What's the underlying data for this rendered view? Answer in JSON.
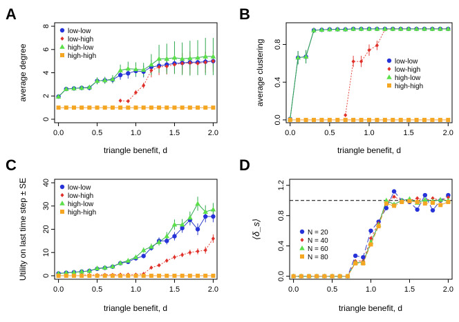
{
  "chart_data": [
    {
      "type": "scatter",
      "panel_label": "A",
      "xlabel": "triangle benefit,  d",
      "ylabel": "average degree",
      "xlim": [
        -0.05,
        2.05
      ],
      "ylim": [
        -0.3,
        8.3
      ],
      "xticks": [
        "0.0",
        "0.5",
        "1.0",
        "1.5",
        "2.0"
      ],
      "yticks": [
        "0",
        "2",
        "4",
        "6",
        "8"
      ],
      "ytick_values": [
        0,
        2,
        4,
        6,
        8
      ],
      "legend": [
        "low-low",
        "low-high",
        "high-low",
        "high-high"
      ],
      "legend_position": "top-left",
      "series": [
        {
          "name": "low-low",
          "x": [
            0,
            0.1,
            0.2,
            0.3,
            0.4,
            0.5,
            0.6,
            0.7,
            0.8,
            0.9,
            1.0,
            1.1,
            1.2,
            1.3,
            1.4,
            1.5,
            1.6,
            1.7,
            1.8,
            1.9,
            2.0
          ],
          "y": [
            1.95,
            2.6,
            2.65,
            2.7,
            2.7,
            3.3,
            3.35,
            3.4,
            3.8,
            3.95,
            4.15,
            4.1,
            4.5,
            4.6,
            4.7,
            4.8,
            4.85,
            4.9,
            4.9,
            4.95,
            5.0
          ],
          "err": [
            0.1,
            0.15,
            0.15,
            0.2,
            0.2,
            0.25,
            0.25,
            0.3,
            0.4,
            0.45,
            0.5,
            0.5,
            0.6,
            0.6,
            0.6,
            0.6,
            0.6,
            0.6,
            0.6,
            0.6,
            0.6
          ]
        },
        {
          "name": "low-high",
          "x": [
            0.8,
            0.9,
            1.0,
            1.1,
            1.2,
            1.3,
            1.4,
            1.5,
            1.6,
            1.7,
            1.8,
            1.9,
            2.0
          ],
          "y": [
            1.6,
            1.55,
            2.3,
            2.9,
            4.2,
            4.5,
            4.55,
            4.7,
            4.8,
            4.85,
            4.8,
            4.9,
            5.0
          ],
          "err": [
            0.15,
            0.15,
            0.2,
            0.25,
            0.6,
            0.7,
            0.7,
            0.8,
            0.9,
            1.0,
            1.0,
            0.9,
            0.9
          ]
        },
        {
          "name": "high-low",
          "x": [
            0,
            0.1,
            0.2,
            0.3,
            0.4,
            0.5,
            0.6,
            0.7,
            0.8,
            0.9,
            1.0,
            1.1,
            1.2,
            1.3,
            1.4,
            1.5,
            1.6,
            1.7,
            1.8,
            1.9,
            2.0
          ],
          "y": [
            1.95,
            2.6,
            2.65,
            2.7,
            2.75,
            3.3,
            3.35,
            3.45,
            4.2,
            4.35,
            4.3,
            4.25,
            4.7,
            5.2,
            5.2,
            5.3,
            5.2,
            5.25,
            5.3,
            5.4,
            5.4
          ],
          "err": [
            0.1,
            0.15,
            0.15,
            0.2,
            0.2,
            0.3,
            0.3,
            0.35,
            0.5,
            0.6,
            0.6,
            0.6,
            0.9,
            1.2,
            1.3,
            1.4,
            1.4,
            1.5,
            1.5,
            1.6,
            1.6
          ]
        },
        {
          "name": "high-high",
          "x": [
            0,
            0.1,
            0.2,
            0.3,
            0.4,
            0.5,
            0.6,
            0.7,
            0.8,
            0.9,
            1.0,
            1.1,
            1.2,
            1.3,
            1.4,
            1.5,
            1.6,
            1.7,
            1.8,
            1.9,
            2.0
          ],
          "y": [
            1,
            1,
            1,
            1,
            1,
            1,
            1,
            1,
            1,
            1,
            1,
            1,
            1,
            1,
            1,
            1,
            1,
            1,
            1,
            1,
            1
          ],
          "err": [
            0,
            0,
            0,
            0,
            0,
            0,
            0,
            0,
            0,
            0,
            0,
            0,
            0,
            0,
            0,
            0,
            0,
            0,
            0,
            0,
            0
          ]
        }
      ]
    },
    {
      "type": "scatter",
      "panel_label": "B",
      "xlabel": "triangle benefit,  d",
      "ylabel": "average clustering",
      "xlim": [
        -0.05,
        2.05
      ],
      "ylim": [
        -0.03,
        1.03
      ],
      "xticks": [
        "0.0",
        "0.5",
        "1.0",
        "1.5",
        "2.0"
      ],
      "yticks": [
        "0.0",
        "0.4",
        "0.8"
      ],
      "ytick_values": [
        0,
        0.4,
        0.8
      ],
      "legend": [
        "low-low",
        "low-high",
        "high-low",
        "high-high"
      ],
      "legend_position": "center-right",
      "series": [
        {
          "name": "low-low",
          "x": [
            0,
            0.1,
            0.2,
            0.3,
            0.4,
            0.5,
            0.6,
            0.7,
            0.8,
            0.9,
            1.0,
            1.1,
            1.2,
            1.3,
            1.4,
            1.5,
            1.6,
            1.7,
            1.8,
            1.9,
            2.0
          ],
          "y": [
            0.01,
            0.66,
            0.67,
            0.95,
            0.955,
            0.96,
            0.96,
            0.96,
            0.965,
            0.965,
            0.965,
            0.965,
            0.965,
            0.965,
            0.965,
            0.965,
            0.965,
            0.965,
            0.965,
            0.965,
            0.965
          ],
          "err": [
            0.01,
            0.07,
            0.07,
            0.03,
            0.02,
            0.02,
            0.02,
            0.02,
            0.01,
            0.01,
            0.01,
            0.01,
            0.01,
            0.01,
            0.01,
            0.01,
            0.01,
            0.01,
            0.01,
            0.01,
            0.01
          ]
        },
        {
          "name": "low-high",
          "x": [
            0.7,
            0.8,
            0.9,
            1.0,
            1.1,
            1.2,
            1.3,
            1.4,
            1.5,
            1.6,
            1.7,
            1.8,
            1.9,
            2.0
          ],
          "y": [
            0.05,
            0.62,
            0.62,
            0.74,
            0.79,
            0.96,
            0.965,
            0.965,
            0.965,
            0.965,
            0.965,
            0.965,
            0.965,
            0.965
          ],
          "err": [
            0,
            0.06,
            0.06,
            0.06,
            0.05,
            0.02,
            0.01,
            0.01,
            0.01,
            0.01,
            0.01,
            0.01,
            0.01,
            0.01
          ]
        },
        {
          "name": "high-low",
          "x": [
            0,
            0.1,
            0.2,
            0.3,
            0.4,
            0.5,
            0.6,
            0.7,
            0.8,
            0.9,
            1.0,
            1.1,
            1.2,
            1.3,
            1.4,
            1.5,
            1.6,
            1.7,
            1.8,
            1.9,
            2.0
          ],
          "y": [
            0.01,
            0.66,
            0.67,
            0.95,
            0.955,
            0.96,
            0.96,
            0.96,
            0.965,
            0.965,
            0.965,
            0.965,
            0.965,
            0.965,
            0.965,
            0.965,
            0.965,
            0.965,
            0.965,
            0.965,
            0.965
          ],
          "err": [
            0.01,
            0.07,
            0.07,
            0.03,
            0.02,
            0.02,
            0.02,
            0.02,
            0.01,
            0.01,
            0.01,
            0.01,
            0.01,
            0.01,
            0.01,
            0.01,
            0.01,
            0.01,
            0.01,
            0.01,
            0.01
          ]
        },
        {
          "name": "high-high",
          "x": [
            0,
            0.1,
            0.2,
            0.3,
            0.4,
            0.5,
            0.6,
            0.7,
            0.8,
            0.9,
            1.0,
            1.1,
            1.2,
            1.3,
            1.4,
            1.5,
            1.6,
            1.7,
            1.8,
            1.9,
            2.0
          ],
          "y": [
            0,
            0,
            0,
            0,
            0,
            0,
            0,
            0,
            0,
            0,
            0,
            0,
            0,
            0,
            0,
            0,
            0,
            0,
            0,
            0,
            0
          ],
          "err": [
            0,
            0,
            0,
            0,
            0,
            0,
            0,
            0,
            0,
            0,
            0,
            0,
            0,
            0,
            0,
            0,
            0,
            0,
            0,
            0,
            0
          ]
        }
      ]
    },
    {
      "type": "scatter",
      "panel_label": "C",
      "xlabel": "triangle benefit,  d",
      "ylabel": "Utility on last time step ± SE",
      "xlim": [
        -0.05,
        2.05
      ],
      "ylim": [
        -1.5,
        41.5
      ],
      "xticks": [
        "0.0",
        "0.5",
        "1.0",
        "1.5",
        "2.0"
      ],
      "yticks": [
        "0",
        "10",
        "20",
        "30",
        "40"
      ],
      "ytick_values": [
        0,
        10,
        20,
        30,
        40
      ],
      "legend": [
        "low-low",
        "low-high",
        "high-low",
        "high-high"
      ],
      "legend_position": "top-left",
      "series": [
        {
          "name": "low-low",
          "x": [
            0,
            0.1,
            0.2,
            0.3,
            0.4,
            0.5,
            0.6,
            0.7,
            0.8,
            0.9,
            1.0,
            1.1,
            1.2,
            1.3,
            1.4,
            1.5,
            1.6,
            1.7,
            1.8,
            1.9,
            2.0
          ],
          "y": [
            1,
            1.3,
            1.5,
            1.8,
            2.1,
            3,
            3.4,
            3.9,
            5.4,
            6,
            7.5,
            8.5,
            12,
            15,
            15,
            17,
            20.5,
            24,
            20,
            25.5,
            25.5
          ],
          "err": [
            0.2,
            0.2,
            0.3,
            0.3,
            0.3,
            0.4,
            0.5,
            0.5,
            0.6,
            0.7,
            0.8,
            1,
            1.2,
            1.5,
            1.5,
            1.8,
            2,
            2.3,
            2.5,
            2.5,
            2.5
          ]
        },
        {
          "name": "low-high",
          "x": [
            0.3,
            0.4,
            0.5,
            0.6,
            0.7,
            0.8,
            0.9,
            1.0,
            1.1,
            1.2,
            1.3,
            1.4,
            1.5,
            1.6,
            1.7,
            1.8,
            1.9,
            2.0
          ],
          "y": [
            0.3,
            0.3,
            0.3,
            0.4,
            0.4,
            0.5,
            0.5,
            0.5,
            0.8,
            3.5,
            4.5,
            6.5,
            8,
            9,
            10,
            10.5,
            11,
            16
          ],
          "err": [
            0,
            0,
            0,
            0,
            0,
            0,
            0,
            0,
            0.2,
            0.5,
            0.6,
            0.8,
            1,
            1,
            1.2,
            1.3,
            1.5,
            1.8
          ]
        },
        {
          "name": "high-low",
          "x": [
            0,
            0.1,
            0.2,
            0.3,
            0.4,
            0.5,
            0.6,
            0.7,
            0.8,
            0.9,
            1.0,
            1.1,
            1.2,
            1.3,
            1.4,
            1.5,
            1.6,
            1.7,
            1.8,
            1.9,
            2.0
          ],
          "y": [
            1,
            1.3,
            1.5,
            1.8,
            2.1,
            3.2,
            3.5,
            4,
            5.5,
            6.5,
            8,
            11,
            12.5,
            14.5,
            17,
            22,
            22,
            25,
            31,
            27.5,
            28.5
          ],
          "err": [
            0.2,
            0.2,
            0.3,
            0.3,
            0.3,
            0.4,
            0.5,
            0.5,
            0.6,
            0.7,
            0.9,
            1.1,
            1.3,
            1.5,
            1.8,
            2.2,
            2.4,
            2.6,
            3,
            2.8,
            2.8
          ]
        },
        {
          "name": "high-high",
          "x": [
            0,
            0.1,
            0.2,
            0.3,
            0.4,
            0.5,
            0.6,
            0.7,
            0.8,
            0.9,
            1.0,
            1.1,
            1.2,
            1.3,
            1.4,
            1.5,
            1.6,
            1.7,
            1.8,
            1.9,
            2.0
          ],
          "y": [
            0,
            0,
            0,
            0,
            0,
            0,
            0,
            0,
            0,
            0,
            0,
            0,
            0,
            0,
            0,
            0,
            0,
            0,
            0,
            0,
            0
          ],
          "err": [
            0,
            0,
            0,
            0,
            0,
            0,
            0,
            0,
            0,
            0,
            0,
            0,
            0,
            0,
            0,
            0,
            0,
            0,
            0,
            0,
            0
          ]
        }
      ]
    },
    {
      "type": "scatter",
      "panel_label": "D",
      "xlabel": "triangle benefit,  d",
      "ylabel": "⟨δ_s⟩",
      "xlim": [
        -0.05,
        2.05
      ],
      "ylim": [
        -0.04,
        1.28
      ],
      "xticks": [
        "0.0",
        "0.5",
        "1.0",
        "1.5",
        "2.0"
      ],
      "yticks": [
        "0.0",
        "0.4",
        "0.8",
        "1.2"
      ],
      "ytick_values": [
        0,
        0.4,
        0.8,
        1.2
      ],
      "reference_line": 1.0,
      "legend": [
        "N = 20",
        "N = 40",
        "N = 60",
        "N = 80"
      ],
      "legend_position": "bottom-left",
      "series": [
        {
          "name": "N = 20",
          "x": [
            0,
            0.1,
            0.2,
            0.3,
            0.4,
            0.5,
            0.6,
            0.7,
            0.8,
            0.9,
            1.0,
            1.1,
            1.2,
            1.3,
            1.4,
            1.5,
            1.6,
            1.7,
            1.8,
            1.9,
            2.0
          ],
          "y": [
            0,
            0,
            0,
            0,
            0,
            0,
            0,
            0,
            0.27,
            0.25,
            0.6,
            0.72,
            0.9,
            1.12,
            1.0,
            0.98,
            0.88,
            1.07,
            0.87,
            1.0,
            1.07
          ]
        },
        {
          "name": "N = 40",
          "x": [
            0,
            0.1,
            0.2,
            0.3,
            0.4,
            0.5,
            0.6,
            0.7,
            0.8,
            0.9,
            1.0,
            1.1,
            1.2,
            1.3,
            1.4,
            1.5,
            1.6,
            1.7,
            1.8,
            1.9,
            2.0
          ],
          "y": [
            0,
            0,
            0,
            0,
            0,
            0,
            0,
            0,
            0.2,
            0.2,
            0.5,
            0.7,
            0.98,
            1.05,
            1.0,
            1.0,
            1.03,
            1.0,
            1.03,
            1.0,
            1.04
          ]
        },
        {
          "name": "N = 60",
          "x": [
            0,
            0.1,
            0.2,
            0.3,
            0.4,
            0.5,
            0.6,
            0.7,
            0.8,
            0.9,
            1.0,
            1.1,
            1.2,
            1.3,
            1.4,
            1.5,
            1.6,
            1.7,
            1.8,
            1.9,
            2.0
          ],
          "y": [
            0,
            0,
            0,
            0,
            0,
            0,
            0,
            0,
            0.18,
            0.18,
            0.45,
            0.68,
            1.0,
            0.95,
            1.0,
            1.02,
            0.97,
            1.01,
            0.99,
            1.01,
            1.0
          ]
        },
        {
          "name": "N = 80",
          "x": [
            0,
            0.1,
            0.2,
            0.3,
            0.4,
            0.5,
            0.6,
            0.7,
            0.8,
            0.9,
            1.0,
            1.1,
            1.2,
            1.3,
            1.4,
            1.5,
            1.6,
            1.7,
            1.8,
            1.9,
            2.0
          ],
          "y": [
            0,
            0,
            0,
            0,
            0,
            0,
            0,
            0,
            0.17,
            0.17,
            0.42,
            0.66,
            0.96,
            0.93,
            0.98,
            0.99,
            0.98,
            0.96,
            0.97,
            0.94,
            0.98
          ]
        }
      ]
    }
  ],
  "colors": {
    "series": [
      "#2633d9",
      "#e0302a",
      "#5ce04a",
      "#f5a623"
    ],
    "lines": [
      "#3340c8",
      "#e6403a",
      "#2fa84f",
      "#f2a33a"
    ],
    "axis": "#000000",
    "ref_line": "#000000"
  },
  "markers": [
    "circle",
    "diamond",
    "triangle",
    "square"
  ]
}
